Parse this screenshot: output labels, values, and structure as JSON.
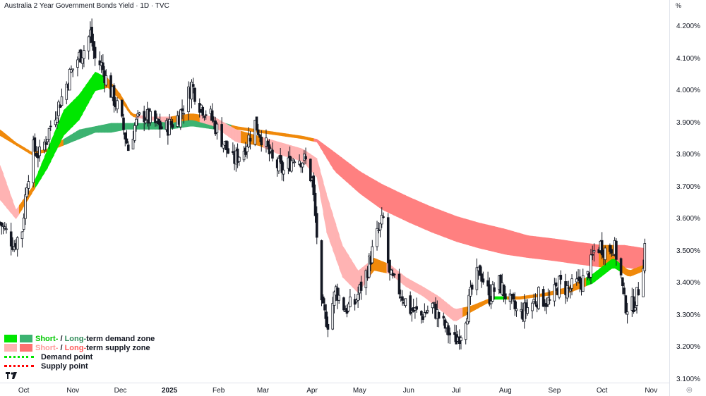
{
  "header": {
    "title": "Australia 2 Year Government Bonds Yield · 1D · TVC",
    "unit": "%"
  },
  "colors": {
    "short_demand": "#00e600",
    "long_demand": "#3cb371",
    "short_supply": "#ffb3b3",
    "long_supply": "#ff8080",
    "transition": "#f0890a",
    "candle_up": "#ffffff",
    "candle_down": "#131722"
  },
  "legend": {
    "demand_short": "Short-",
    "demand_sep": " / ",
    "demand_long": "Long-",
    "demand_rest": "term demand zone",
    "supply_short": "Short-",
    "supply_sep": " / ",
    "supply_long": "Long-",
    "supply_rest": "term supply zone",
    "demand_point": "Demand point",
    "supply_point": "Supply point"
  },
  "chart_data": {
    "type": "candlestick",
    "title": "Australia 2 Year Government Bonds Yield · 1D · TVC",
    "ylabel": "%",
    "ylim": [
      3.1,
      4.25
    ],
    "y_ticks": [
      "4.200%",
      "4.100%",
      "4.000%",
      "3.900%",
      "3.800%",
      "3.700%",
      "3.600%",
      "3.500%",
      "3.400%",
      "3.300%",
      "3.200%",
      "3.100%"
    ],
    "x_ticks": [
      "Oct",
      "Nov",
      "Dec",
      "2025",
      "Feb",
      "Mar",
      "Apr",
      "May",
      "Jun",
      "Jul",
      "Aug",
      "Sep",
      "Oct",
      "Nov"
    ],
    "x_tick_bold": [
      "2025"
    ],
    "date_range": [
      "2024-09-16",
      "2025-10-31"
    ],
    "close_path": [
      [
        "2024-09-16",
        3.59
      ],
      [
        "2024-09-20",
        3.56
      ],
      [
        "2024-09-25",
        3.52
      ],
      [
        "2024-09-30",
        3.57
      ],
      [
        "2024-10-03",
        3.72
      ],
      [
        "2024-10-07",
        3.82
      ],
      [
        "2024-10-11",
        3.8
      ],
      [
        "2024-10-15",
        3.85
      ],
      [
        "2024-10-20",
        3.92
      ],
      [
        "2024-10-25",
        3.98
      ],
      [
        "2024-10-30",
        4.05
      ],
      [
        "2024-11-04",
        4.1
      ],
      [
        "2024-11-08",
        4.13
      ],
      [
        "2024-11-12",
        4.18
      ],
      [
        "2024-11-15",
        4.1
      ],
      [
        "2024-11-19",
        4.08
      ],
      [
        "2024-11-24",
        4.01
      ],
      [
        "2024-11-29",
        3.95
      ],
      [
        "2024-12-03",
        3.88
      ],
      [
        "2024-12-06",
        3.82
      ],
      [
        "2024-12-10",
        3.89
      ],
      [
        "2024-12-15",
        3.93
      ],
      [
        "2024-12-22",
        3.9
      ],
      [
        "2024-12-29",
        3.88
      ],
      [
        "2025-01-05",
        3.91
      ],
      [
        "2025-01-10",
        3.95
      ],
      [
        "2025-01-15",
        4.02
      ],
      [
        "2025-01-20",
        3.96
      ],
      [
        "2025-01-27",
        3.92
      ],
      [
        "2025-02-03",
        3.85
      ],
      [
        "2025-02-10",
        3.78
      ],
      [
        "2025-02-17",
        3.82
      ],
      [
        "2025-02-24",
        3.9
      ],
      [
        "2025-03-01",
        3.85
      ],
      [
        "2025-03-07",
        3.78
      ],
      [
        "2025-03-14",
        3.75
      ],
      [
        "2025-03-21",
        3.8
      ],
      [
        "2025-03-28",
        3.78
      ],
      [
        "2025-04-01",
        3.72
      ],
      [
        "2025-04-04",
        3.55
      ],
      [
        "2025-04-07",
        3.32
      ],
      [
        "2025-04-11",
        3.28
      ],
      [
        "2025-04-16",
        3.38
      ],
      [
        "2025-04-22",
        3.32
      ],
      [
        "2025-04-28",
        3.34
      ],
      [
        "2025-05-05",
        3.43
      ],
      [
        "2025-05-12",
        3.55
      ],
      [
        "2025-05-16",
        3.6
      ],
      [
        "2025-05-20",
        3.42
      ],
      [
        "2025-05-26",
        3.38
      ],
      [
        "2025-06-02",
        3.32
      ],
      [
        "2025-06-09",
        3.3
      ],
      [
        "2025-06-16",
        3.33
      ],
      [
        "2025-06-23",
        3.27
      ],
      [
        "2025-06-30",
        3.22
      ],
      [
        "2025-07-04",
        3.25
      ],
      [
        "2025-07-08",
        3.32
      ],
      [
        "2025-07-12",
        3.4
      ],
      [
        "2025-07-16",
        3.44
      ],
      [
        "2025-07-22",
        3.36
      ],
      [
        "2025-07-28",
        3.4
      ],
      [
        "2025-08-04",
        3.34
      ],
      [
        "2025-08-10",
        3.3
      ],
      [
        "2025-08-16",
        3.33
      ],
      [
        "2025-08-22",
        3.36
      ],
      [
        "2025-08-29",
        3.34
      ],
      [
        "2025-09-04",
        3.4
      ],
      [
        "2025-09-10",
        3.38
      ],
      [
        "2025-09-16",
        3.4
      ],
      [
        "2025-09-22",
        3.42
      ],
      [
        "2025-09-26",
        3.5
      ],
      [
        "2025-09-30",
        3.52
      ],
      [
        "2025-10-04",
        3.5
      ],
      [
        "2025-10-08",
        3.52
      ],
      [
        "2025-10-12",
        3.46
      ],
      [
        "2025-10-15",
        3.34
      ],
      [
        "2025-10-19",
        3.32
      ],
      [
        "2025-10-23",
        3.36
      ],
      [
        "2025-10-26",
        3.43
      ],
      [
        "2025-10-28",
        3.52
      ]
    ],
    "short_term_band": [
      [
        "2024-09-16",
        3.77,
        3.66
      ],
      [
        "2024-09-26",
        3.63,
        3.6
      ],
      [
        "2024-10-06",
        3.7,
        3.68
      ],
      [
        "2024-10-16",
        3.82,
        3.76
      ],
      [
        "2024-10-26",
        3.94,
        3.86
      ],
      [
        "2024-11-05",
        3.99,
        3.91
      ],
      [
        "2024-11-15",
        4.06,
        4.0
      ],
      [
        "2024-11-23",
        4.04,
        4.01
      ],
      [
        "2024-12-01",
        3.99,
        3.97
      ],
      [
        "2024-12-08",
        3.93,
        3.92
      ],
      [
        "2024-12-18",
        3.92,
        3.91
      ],
      [
        "2025-01-01",
        3.92,
        3.9
      ],
      [
        "2025-01-15",
        3.93,
        3.91
      ],
      [
        "2025-01-29",
        3.92,
        3.89
      ],
      [
        "2025-02-12",
        3.88,
        3.84
      ],
      [
        "2025-02-26",
        3.86,
        3.83
      ],
      [
        "2025-03-12",
        3.84,
        3.8
      ],
      [
        "2025-03-26",
        3.82,
        3.78
      ],
      [
        "2025-04-04",
        3.79,
        3.73
      ],
      [
        "2025-04-10",
        3.68,
        3.56
      ],
      [
        "2025-04-20",
        3.52,
        3.42
      ],
      [
        "2025-04-30",
        3.44,
        3.37
      ],
      [
        "2025-05-10",
        3.48,
        3.44
      ],
      [
        "2025-05-20",
        3.46,
        3.43
      ],
      [
        "2025-05-30",
        3.42,
        3.39
      ],
      [
        "2025-06-10",
        3.39,
        3.36
      ],
      [
        "2025-06-20",
        3.36,
        3.32
      ],
      [
        "2025-06-30",
        3.32,
        3.28
      ],
      [
        "2025-07-10",
        3.33,
        3.31
      ],
      [
        "2025-07-25",
        3.36,
        3.35
      ],
      [
        "2025-08-10",
        3.36,
        3.35
      ],
      [
        "2025-08-25",
        3.37,
        3.36
      ],
      [
        "2025-09-10",
        3.39,
        3.37
      ],
      [
        "2025-09-25",
        3.43,
        3.4
      ],
      [
        "2025-10-08",
        3.48,
        3.45
      ],
      [
        "2025-10-18",
        3.44,
        3.42
      ],
      [
        "2025-10-28",
        3.46,
        3.44
      ]
    ],
    "long_term_band": [
      [
        "2024-09-16",
        3.88,
        3.86
      ],
      [
        "2024-09-26",
        3.84,
        3.83
      ],
      [
        "2024-10-06",
        3.81,
        3.8
      ],
      [
        "2024-10-16",
        3.82,
        3.81
      ],
      [
        "2024-10-26",
        3.85,
        3.83
      ],
      [
        "2024-11-05",
        3.88,
        3.85
      ],
      [
        "2024-11-15",
        3.89,
        3.87
      ],
      [
        "2024-11-25",
        3.9,
        3.87
      ],
      [
        "2024-12-05",
        3.9,
        3.88
      ],
      [
        "2024-12-15",
        3.9,
        3.88
      ],
      [
        "2025-01-01",
        3.91,
        3.88
      ],
      [
        "2025-01-15",
        3.91,
        3.89
      ],
      [
        "2025-01-29",
        3.91,
        3.88
      ],
      [
        "2025-02-12",
        3.89,
        3.88
      ],
      [
        "2025-02-26",
        3.88,
        3.87
      ],
      [
        "2025-03-12",
        3.87,
        3.86
      ],
      [
        "2025-03-26",
        3.86,
        3.85
      ],
      [
        "2025-04-04",
        3.85,
        3.84
      ],
      [
        "2025-04-15",
        3.81,
        3.75
      ],
      [
        "2025-05-01",
        3.75,
        3.68
      ],
      [
        "2025-05-15",
        3.71,
        3.63
      ],
      [
        "2025-06-01",
        3.67,
        3.59
      ],
      [
        "2025-06-15",
        3.64,
        3.56
      ],
      [
        "2025-07-01",
        3.61,
        3.53
      ],
      [
        "2025-07-15",
        3.59,
        3.51
      ],
      [
        "2025-08-01",
        3.57,
        3.49
      ],
      [
        "2025-08-15",
        3.55,
        3.48
      ],
      [
        "2025-09-01",
        3.54,
        3.47
      ],
      [
        "2025-09-15",
        3.53,
        3.46
      ],
      [
        "2025-10-01",
        3.52,
        3.45
      ],
      [
        "2025-10-15",
        3.52,
        3.45
      ],
      [
        "2025-10-28",
        3.51,
        3.44
      ]
    ],
    "short_band_colors": [
      [
        "2024-09-16",
        "short_supply"
      ],
      [
        "2024-09-28",
        "transition"
      ],
      [
        "2024-10-08",
        "short_demand"
      ],
      [
        "2024-11-20",
        "transition"
      ],
      [
        "2024-12-10",
        "short_supply"
      ],
      [
        "2025-01-01",
        "transition"
      ],
      [
        "2025-01-20",
        "short_supply"
      ],
      [
        "2025-02-15",
        "transition"
      ],
      [
        "2025-03-01",
        "short_supply"
      ],
      [
        "2025-05-08",
        "transition"
      ],
      [
        "2025-05-18",
        "short_supply"
      ],
      [
        "2025-07-05",
        "transition"
      ],
      [
        "2025-07-22",
        "short_demand"
      ],
      [
        "2025-08-01",
        "transition"
      ],
      [
        "2025-09-20",
        "short_demand"
      ],
      [
        "2025-10-12",
        "transition"
      ]
    ],
    "long_band_colors": [
      [
        "2024-09-16",
        "transition"
      ],
      [
        "2024-10-26",
        "long_demand"
      ],
      [
        "2025-02-08",
        "transition"
      ],
      [
        "2025-04-01",
        "long_supply"
      ],
      [
        "2025-09-28",
        "transition"
      ],
      [
        "2025-10-08",
        "long_supply"
      ]
    ]
  }
}
